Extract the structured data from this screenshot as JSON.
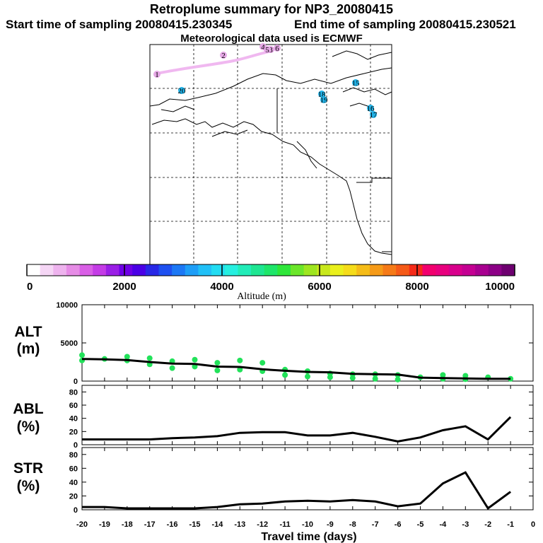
{
  "header": {
    "title": "Retroplume summary for NP3_20080415",
    "start_label": "Start time of sampling 20080415.230345",
    "end_label": "End time of sampling 20080415.230521",
    "met_label": "Meteorological data used is ECMWF"
  },
  "map": {
    "markers": [
      {
        "label": "1",
        "color": "#e6a8e6"
      },
      {
        "label": "2",
        "color": "#e6a8e6"
      },
      {
        "label": "3",
        "color": "#e6a8e6"
      },
      {
        "label": "4",
        "color": "#e6a8e6"
      },
      {
        "label": "5",
        "color": "#e6a8e6"
      },
      {
        "label": "6",
        "color": "#e6a8e6"
      },
      {
        "label": "15",
        "color": "#22b3e8"
      },
      {
        "label": "16",
        "color": "#22b3e8"
      },
      {
        "label": "17",
        "color": "#22b3e8"
      },
      {
        "label": "18",
        "color": "#22b3e8"
      },
      {
        "label": "19",
        "color": "#22b3e8"
      },
      {
        "label": "20",
        "color": "#22b3e8"
      }
    ]
  },
  "colorbar": {
    "label": "Altitude (m)",
    "tick_labels": [
      "0",
      "2000",
      "4000",
      "6000",
      "8000",
      "10000"
    ],
    "colors": [
      "#ffffff",
      "#f5d6f5",
      "#eeb3ee",
      "#e68ce6",
      "#d95fe6",
      "#c43ce6",
      "#9a1fe6",
      "#6e00e6",
      "#4a00e6",
      "#2828e6",
      "#1e50f0",
      "#1c78f5",
      "#1e9ef7",
      "#21c0f7",
      "#22dcf2",
      "#26efe0",
      "#22ecb8",
      "#1ee692",
      "#1ee66a",
      "#2ee63a",
      "#6be62a",
      "#9ee620",
      "#c8e81c",
      "#eaf01c",
      "#f5dc1a",
      "#f5bc18",
      "#f59a18",
      "#f57a18",
      "#f55a18",
      "#f52a18",
      "#f2006e",
      "#e8007e",
      "#d8008c",
      "#c40092",
      "#a80090",
      "#8c0086",
      "#6e0070"
    ]
  },
  "chart_data": [
    {
      "type": "line",
      "name": "ALT",
      "ylabel": "ALT\n(m)",
      "ylim": [
        0,
        10000
      ],
      "yticks": [
        0,
        5000,
        10000
      ],
      "x": [
        -20,
        -19,
        -18,
        -17,
        -16,
        -15,
        -14,
        -13,
        -12,
        -11,
        -10,
        -9,
        -8,
        -7,
        -6,
        -5,
        -4,
        -3,
        -2,
        -1
      ],
      "values": [
        2900,
        2850,
        2750,
        2500,
        2300,
        2250,
        1900,
        1850,
        1550,
        1350,
        1200,
        1150,
        950,
        900,
        850,
        450,
        400,
        350,
        300,
        300
      ],
      "scatter": [
        {
          "x": -20,
          "y": 3400
        },
        {
          "x": -20,
          "y": 2700
        },
        {
          "x": -19,
          "y": 2900
        },
        {
          "x": -18,
          "y": 3200
        },
        {
          "x": -18,
          "y": 2700
        },
        {
          "x": -17,
          "y": 3000
        },
        {
          "x": -17,
          "y": 2200
        },
        {
          "x": -16,
          "y": 2600
        },
        {
          "x": -16,
          "y": 1700
        },
        {
          "x": -15,
          "y": 2800
        },
        {
          "x": -15,
          "y": 1900
        },
        {
          "x": -14,
          "y": 2400
        },
        {
          "x": -14,
          "y": 1400
        },
        {
          "x": -13,
          "y": 2700
        },
        {
          "x": -13,
          "y": 1500
        },
        {
          "x": -12,
          "y": 2400
        },
        {
          "x": -12,
          "y": 1300
        },
        {
          "x": -11,
          "y": 1500
        },
        {
          "x": -11,
          "y": 800
        },
        {
          "x": -10,
          "y": 1300
        },
        {
          "x": -10,
          "y": 600
        },
        {
          "x": -9,
          "y": 1000
        },
        {
          "x": -9,
          "y": 500
        },
        {
          "x": -8,
          "y": 900
        },
        {
          "x": -8,
          "y": 400
        },
        {
          "x": -7,
          "y": 900
        },
        {
          "x": -7,
          "y": 300
        },
        {
          "x": -6,
          "y": 800
        },
        {
          "x": -6,
          "y": 200
        },
        {
          "x": -5,
          "y": 500
        },
        {
          "x": -4,
          "y": 800
        },
        {
          "x": -4,
          "y": 300
        },
        {
          "x": -3,
          "y": 700
        },
        {
          "x": -3,
          "y": 250
        },
        {
          "x": -2,
          "y": 500
        },
        {
          "x": -1,
          "y": 300
        }
      ]
    },
    {
      "type": "line",
      "name": "ABL",
      "ylabel": "ABL\n(%)",
      "ylim": [
        0,
        90
      ],
      "yticks": [
        0,
        20,
        40,
        60,
        80
      ],
      "x": [
        -20,
        -19,
        -18,
        -17,
        -16,
        -15,
        -14,
        -13,
        -12,
        -11,
        -10,
        -9,
        -8,
        -7,
        -6,
        -5,
        -4,
        -3,
        -2,
        -1
      ],
      "values": [
        8,
        8,
        8,
        8,
        10,
        11,
        13,
        18,
        19,
        19,
        14,
        14,
        18,
        12,
        5,
        11,
        22,
        28,
        8,
        42
      ]
    },
    {
      "type": "line",
      "name": "STR",
      "ylabel": "STR\n(%)",
      "ylim": [
        0,
        90
      ],
      "yticks": [
        0,
        20,
        40,
        60,
        80
      ],
      "x": [
        -20,
        -19,
        -18,
        -17,
        -16,
        -15,
        -14,
        -13,
        -12,
        -11,
        -10,
        -9,
        -8,
        -7,
        -6,
        -5,
        -4,
        -3,
        -2,
        -1
      ],
      "values": [
        4,
        4,
        2,
        2,
        2,
        2,
        4,
        8,
        9,
        12,
        13,
        12,
        14,
        12,
        5,
        9,
        38,
        54,
        2,
        26
      ]
    }
  ],
  "xaxis": {
    "label": "Travel time (days)",
    "tick_labels": [
      "-20",
      "-19",
      "-18",
      "-17",
      "-16",
      "-15",
      "-14",
      "-13",
      "-12",
      "-11",
      "-10",
      "-9",
      "-8",
      "-7",
      "-6",
      "-5",
      "-4",
      "-3",
      "-2",
      "-1",
      "0"
    ]
  }
}
